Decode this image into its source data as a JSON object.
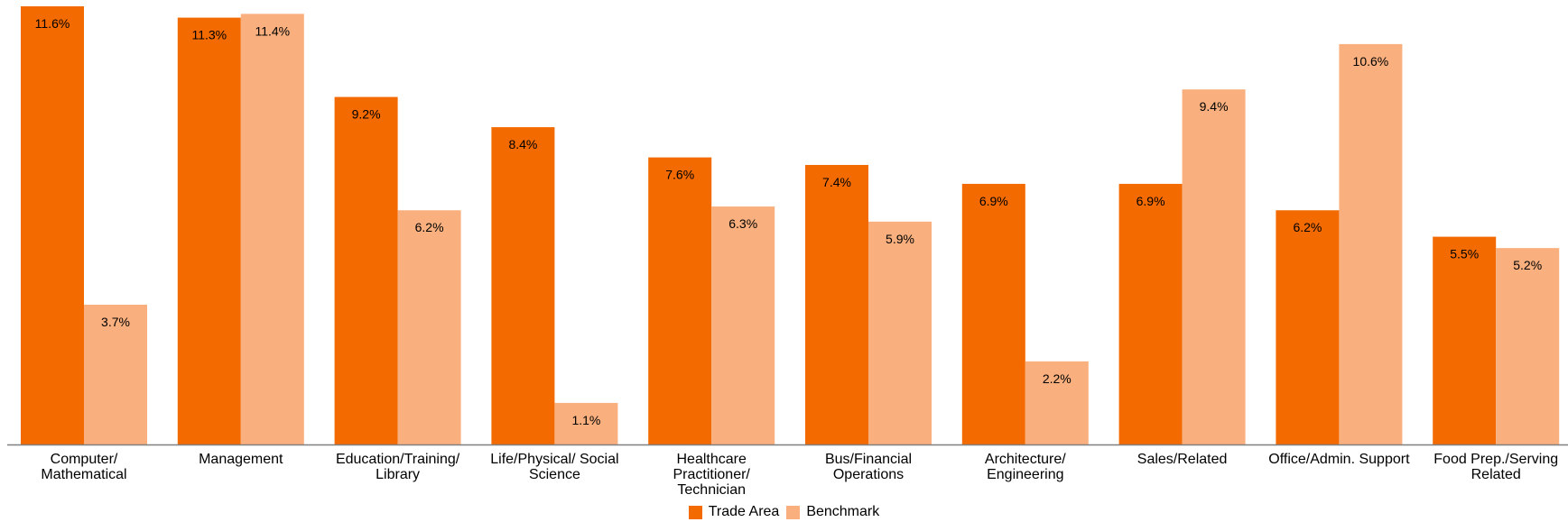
{
  "chart_data": {
    "type": "bar",
    "categories": [
      [
        "Computer/",
        "Mathematical"
      ],
      [
        "Management"
      ],
      [
        "Education/Training/",
        "Library"
      ],
      [
        "Life/Physical/ Social",
        "Science"
      ],
      [
        "Healthcare",
        "Practitioner/",
        "Technician"
      ],
      [
        "Bus/Financial",
        "Operations"
      ],
      [
        "Architecture/",
        "Engineering"
      ],
      [
        "Sales/Related"
      ],
      [
        "Office/Admin. Support"
      ],
      [
        "Food Prep./Serving",
        "Related"
      ]
    ],
    "series": [
      {
        "name": "Trade Area",
        "color": "#F36A00",
        "values": [
          11.6,
          11.3,
          9.2,
          8.4,
          7.6,
          7.4,
          6.9,
          6.9,
          6.2,
          5.5
        ],
        "labels": [
          "11.6%",
          "11.3%",
          "9.2%",
          "8.4%",
          "7.6%",
          "7.4%",
          "6.9%",
          "6.9%",
          "6.2%",
          "5.5%"
        ]
      },
      {
        "name": "Benchmark",
        "color": "#F9B07E",
        "values": [
          3.7,
          11.4,
          6.2,
          1.1,
          6.3,
          5.9,
          2.2,
          9.4,
          10.6,
          5.2
        ],
        "labels": [
          "3.7%",
          "11.4%",
          "6.2%",
          "1.1%",
          "6.3%",
          "5.9%",
          "2.2%",
          "9.4%",
          "10.6%",
          "5.2%"
        ]
      }
    ],
    "ylim": [
      0,
      11.6
    ],
    "grid": false,
    "legend_position": "bottom-center",
    "axis_color": "#808080"
  }
}
